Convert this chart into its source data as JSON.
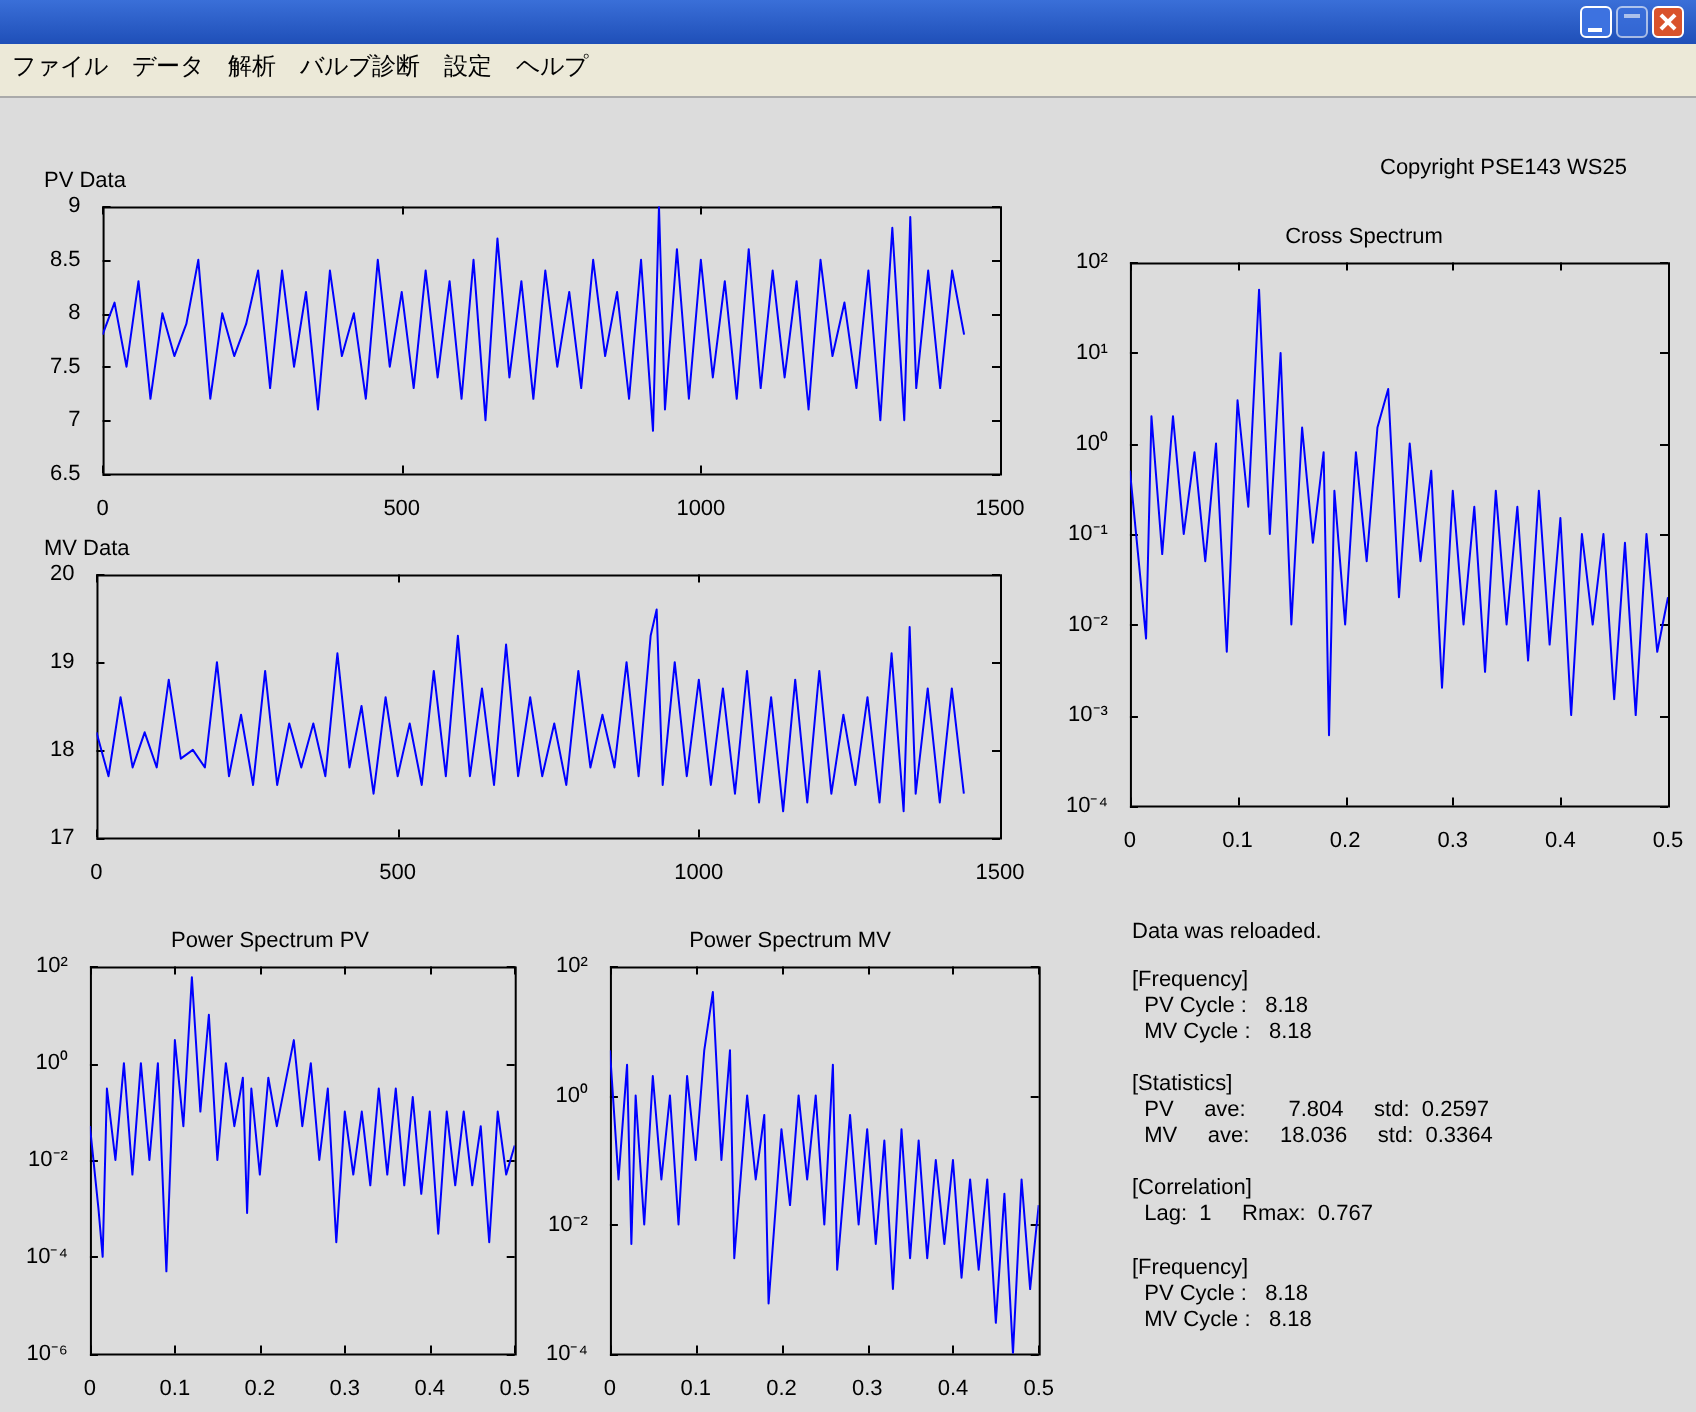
{
  "chart_data": [
    {
      "type": "other",
      "annotations": [
        "ファイル",
        "データ",
        "解析",
        "バルブ診断",
        "設定",
        "ヘルプ"
      ]
    },
    {
      "type": "line",
      "title": "PV Data",
      "xlim": [
        0,
        1500
      ],
      "xticks": [
        0,
        500,
        1000,
        1500
      ],
      "ylim": [
        6.5,
        9
      ],
      "yticks": [
        6.5,
        7,
        7.5,
        8,
        8.5,
        9
      ],
      "x": [
        0,
        20,
        40,
        60,
        80,
        100,
        120,
        140,
        160,
        180,
        200,
        220,
        240,
        260,
        280,
        300,
        320,
        340,
        360,
        380,
        400,
        420,
        440,
        460,
        480,
        500,
        520,
        540,
        560,
        580,
        600,
        620,
        640,
        660,
        680,
        700,
        720,
        740,
        760,
        780,
        800,
        820,
        840,
        860,
        880,
        900,
        920,
        930,
        940,
        960,
        980,
        1000,
        1020,
        1040,
        1060,
        1080,
        1100,
        1120,
        1140,
        1160,
        1180,
        1200,
        1220,
        1240,
        1260,
        1280,
        1300,
        1320,
        1340,
        1350,
        1360,
        1380,
        1400,
        1420,
        1440
      ],
      "series": [
        {
          "color": "#0000ff",
          "values": [
            7.8,
            8.1,
            7.5,
            8.3,
            7.2,
            8.0,
            7.6,
            7.9,
            8.5,
            7.2,
            8.0,
            7.6,
            7.9,
            8.4,
            7.3,
            8.4,
            7.5,
            8.2,
            7.1,
            8.4,
            7.6,
            8.0,
            7.2,
            8.5,
            7.5,
            8.2,
            7.3,
            8.4,
            7.4,
            8.3,
            7.2,
            8.5,
            7.0,
            8.7,
            7.4,
            8.3,
            7.2,
            8.4,
            7.5,
            8.2,
            7.3,
            8.5,
            7.6,
            8.2,
            7.2,
            8.5,
            6.9,
            9.0,
            7.1,
            8.6,
            7.2,
            8.5,
            7.4,
            8.3,
            7.2,
            8.6,
            7.3,
            8.4,
            7.4,
            8.3,
            7.1,
            8.5,
            7.6,
            8.1,
            7.3,
            8.4,
            7.0,
            8.8,
            7.0,
            8.9,
            7.3,
            8.4,
            7.3,
            8.4,
            7.8
          ]
        }
      ]
    },
    {
      "type": "line",
      "title": "MV Data",
      "xlim": [
        0,
        1500
      ],
      "xticks": [
        0,
        500,
        1000,
        1500
      ],
      "ylim": [
        17,
        20
      ],
      "yticks": [
        17,
        18,
        19,
        20
      ],
      "x": [
        0,
        20,
        40,
        60,
        80,
        100,
        120,
        140,
        160,
        180,
        200,
        220,
        240,
        260,
        280,
        300,
        320,
        340,
        360,
        380,
        400,
        420,
        440,
        460,
        480,
        500,
        520,
        540,
        560,
        580,
        600,
        620,
        640,
        660,
        680,
        700,
        720,
        740,
        760,
        780,
        800,
        820,
        840,
        860,
        880,
        900,
        920,
        930,
        940,
        960,
        980,
        1000,
        1020,
        1040,
        1060,
        1080,
        1100,
        1120,
        1140,
        1160,
        1180,
        1200,
        1220,
        1240,
        1260,
        1280,
        1300,
        1320,
        1340,
        1350,
        1360,
        1380,
        1400,
        1420,
        1440
      ],
      "series": [
        {
          "color": "#0000ff",
          "values": [
            18.2,
            17.7,
            18.6,
            17.8,
            18.2,
            17.8,
            18.8,
            17.9,
            18.0,
            17.8,
            19.0,
            17.7,
            18.4,
            17.6,
            18.9,
            17.6,
            18.3,
            17.8,
            18.3,
            17.7,
            19.1,
            17.8,
            18.5,
            17.5,
            18.6,
            17.7,
            18.3,
            17.6,
            18.9,
            17.7,
            19.3,
            17.7,
            18.7,
            17.6,
            19.2,
            17.7,
            18.6,
            17.7,
            18.3,
            17.6,
            18.9,
            17.8,
            18.4,
            17.8,
            19.0,
            17.7,
            19.3,
            19.6,
            17.6,
            19.0,
            17.7,
            18.8,
            17.6,
            18.7,
            17.5,
            18.9,
            17.4,
            18.6,
            17.3,
            18.8,
            17.4,
            18.9,
            17.5,
            18.4,
            17.6,
            18.6,
            17.4,
            19.1,
            17.3,
            19.4,
            17.5,
            18.7,
            17.4,
            18.7,
            17.5
          ]
        }
      ]
    },
    {
      "type": "line",
      "title": "Cross Spectrum",
      "log": "y",
      "xlim": [
        0,
        0.5
      ],
      "xticks": [
        0,
        0.1,
        0.2,
        0.3,
        0.4,
        0.5
      ],
      "ylim": [
        0.0001,
        100
      ],
      "yticks": [
        {
          "value": 0.0001,
          "label": "10⁻⁴"
        },
        {
          "value": 0.001,
          "label": "10⁻³"
        },
        {
          "value": 0.01,
          "label": "10⁻²"
        },
        {
          "value": 0.1,
          "label": "10⁻¹"
        },
        {
          "value": 1,
          "label": "10⁰"
        },
        {
          "value": 10,
          "label": "10¹"
        },
        {
          "value": 100,
          "label": "10²"
        }
      ],
      "x": [
        0,
        0.01,
        0.015,
        0.02,
        0.03,
        0.04,
        0.05,
        0.06,
        0.07,
        0.08,
        0.09,
        0.1,
        0.11,
        0.12,
        0.13,
        0.14,
        0.15,
        0.16,
        0.17,
        0.18,
        0.185,
        0.19,
        0.2,
        0.21,
        0.22,
        0.23,
        0.24,
        0.25,
        0.26,
        0.27,
        0.28,
        0.29,
        0.3,
        0.31,
        0.32,
        0.33,
        0.34,
        0.35,
        0.36,
        0.37,
        0.38,
        0.39,
        0.4,
        0.41,
        0.42,
        0.43,
        0.44,
        0.45,
        0.46,
        0.47,
        0.48,
        0.49,
        0.5
      ],
      "series": [
        {
          "color": "#0000ff",
          "values": [
            0.5,
            0.03,
            0.007,
            2,
            0.06,
            2,
            0.1,
            0.8,
            0.05,
            1,
            0.005,
            3,
            0.2,
            50,
            0.1,
            10,
            0.01,
            1.5,
            0.08,
            0.8,
            0.0006,
            0.3,
            0.01,
            0.8,
            0.05,
            1.5,
            4,
            0.02,
            1,
            0.05,
            0.5,
            0.002,
            0.3,
            0.01,
            0.2,
            0.003,
            0.3,
            0.01,
            0.2,
            0.004,
            0.3,
            0.006,
            0.15,
            0.001,
            0.1,
            0.01,
            0.1,
            0.0015,
            0.08,
            0.001,
            0.1,
            0.005,
            0.02
          ]
        }
      ]
    },
    {
      "type": "line",
      "title": "Power Spectrum PV",
      "log": "y",
      "xlim": [
        0,
        0.5
      ],
      "xticks": [
        0,
        0.1,
        0.2,
        0.3,
        0.4,
        0.5
      ],
      "ylim": [
        1e-06,
        100
      ],
      "yticks": [
        {
          "value": 1e-06,
          "label": "10⁻⁶"
        },
        {
          "value": 0.0001,
          "label": "10⁻⁴"
        },
        {
          "value": 0.01,
          "label": "10⁻²"
        },
        {
          "value": 1,
          "label": "10⁰"
        },
        {
          "value": 100,
          "label": "10²"
        }
      ],
      "x": [
        0,
        0.01,
        0.015,
        0.02,
        0.03,
        0.04,
        0.05,
        0.06,
        0.07,
        0.08,
        0.09,
        0.1,
        0.11,
        0.12,
        0.13,
        0.14,
        0.15,
        0.16,
        0.17,
        0.18,
        0.185,
        0.19,
        0.2,
        0.21,
        0.22,
        0.24,
        0.25,
        0.26,
        0.27,
        0.28,
        0.29,
        0.3,
        0.31,
        0.32,
        0.33,
        0.34,
        0.35,
        0.36,
        0.37,
        0.38,
        0.39,
        0.4,
        0.41,
        0.42,
        0.43,
        0.44,
        0.45,
        0.46,
        0.47,
        0.48,
        0.49,
        0.5
      ],
      "series": [
        {
          "color": "#0000ff",
          "values": [
            0.05,
            0.001,
            0.0001,
            0.3,
            0.01,
            1,
            0.005,
            1,
            0.01,
            1,
            5e-05,
            3,
            0.05,
            60,
            0.1,
            10,
            0.01,
            1,
            0.05,
            0.5,
            0.0008,
            0.3,
            0.005,
            0.5,
            0.05,
            3,
            0.05,
            1,
            0.01,
            0.3,
            0.0002,
            0.1,
            0.005,
            0.1,
            0.003,
            0.3,
            0.005,
            0.3,
            0.003,
            0.2,
            0.002,
            0.1,
            0.0003,
            0.1,
            0.003,
            0.1,
            0.003,
            0.05,
            0.0002,
            0.1,
            0.005,
            0.02
          ]
        }
      ]
    },
    {
      "type": "line",
      "title": "Power Spectrum MV",
      "log": "y",
      "xlim": [
        0,
        0.5
      ],
      "xticks": [
        0,
        0.1,
        0.2,
        0.3,
        0.4,
        0.5
      ],
      "ylim": [
        0.0001,
        100
      ],
      "yticks": [
        {
          "value": 0.0001,
          "label": "10⁻⁴"
        },
        {
          "value": 0.01,
          "label": "10⁻²"
        },
        {
          "value": 1,
          "label": "10⁰"
        },
        {
          "value": 100,
          "label": "10²"
        }
      ],
      "x": [
        0,
        0.01,
        0.02,
        0.025,
        0.03,
        0.04,
        0.05,
        0.06,
        0.07,
        0.08,
        0.09,
        0.1,
        0.11,
        0.12,
        0.13,
        0.14,
        0.145,
        0.16,
        0.17,
        0.18,
        0.185,
        0.2,
        0.21,
        0.22,
        0.23,
        0.24,
        0.25,
        0.26,
        0.265,
        0.28,
        0.29,
        0.3,
        0.31,
        0.32,
        0.33,
        0.34,
        0.35,
        0.36,
        0.37,
        0.38,
        0.39,
        0.4,
        0.41,
        0.42,
        0.43,
        0.44,
        0.45,
        0.46,
        0.47,
        0.48,
        0.49,
        0.5
      ],
      "series": [
        {
          "color": "#0000ff",
          "values": [
            5,
            0.05,
            3,
            0.005,
            1,
            0.01,
            2,
            0.05,
            1,
            0.01,
            2,
            0.1,
            5,
            40,
            0.1,
            5,
            0.003,
            1,
            0.05,
            0.5,
            0.0006,
            0.3,
            0.02,
            1,
            0.05,
            1,
            0.01,
            3,
            0.002,
            0.5,
            0.01,
            0.3,
            0.005,
            0.2,
            0.001,
            0.3,
            0.003,
            0.2,
            0.003,
            0.1,
            0.005,
            0.1,
            0.0015,
            0.05,
            0.002,
            0.05,
            0.0003,
            0.03,
            0.0001,
            0.05,
            0.001,
            0.02
          ]
        }
      ]
    },
    {
      "type": "other",
      "annotations": [
        "Copyright PSE143 WS25"
      ]
    },
    {
      "type": "other",
      "annotations": [
        "Data was reloaded."
      ]
    },
    {
      "type": "other",
      "annotations": [
        "[Frequency]",
        "  PV Cycle :   8.18",
        "  MV Cycle :   8.18"
      ]
    },
    {
      "type": "other",
      "annotations": [
        "[Statistics]",
        "  PV     ave:       7.804     std:  0.2597",
        "  MV     ave:     18.036     std:  0.3364"
      ]
    },
    {
      "type": "other",
      "annotations": [
        "[Correlation]",
        "  Lag:  1     Rmax:  0.767"
      ]
    },
    {
      "type": "other",
      "annotations": [
        "[Frequency]",
        "  PV Cycle :   8.18",
        "  MV Cycle :   8.18"
      ]
    }
  ]
}
